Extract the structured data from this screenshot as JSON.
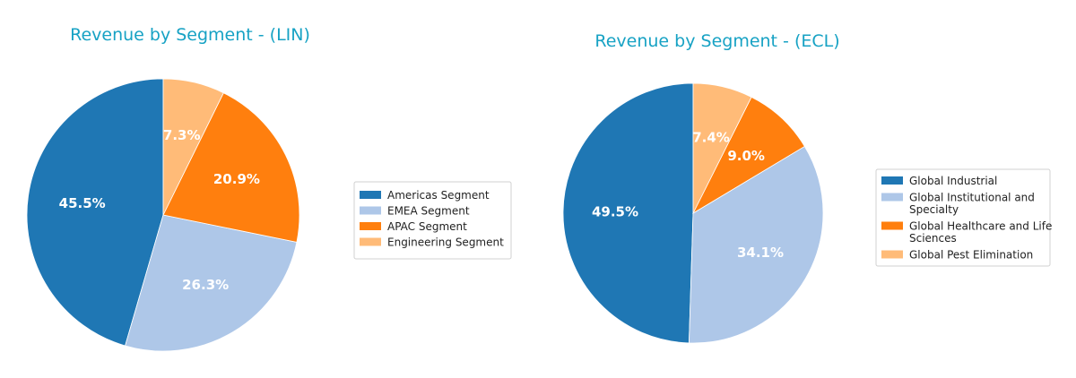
{
  "chart_data": [
    {
      "type": "pie",
      "title": "Revenue by Segment - (LIN)",
      "categories": [
        "Americas Segment",
        "EMEA Segment",
        "APAC Segment",
        "Engineering Segment"
      ],
      "values": [
        45.5,
        26.3,
        20.9,
        7.3
      ],
      "labels": [
        "45.5%",
        "26.3%",
        "20.9%",
        "7.3%"
      ],
      "colors": [
        "#1f77b4",
        "#aec7e8",
        "#ff7f0e",
        "#ffbb78"
      ],
      "start_angle_deg": 90,
      "direction": "counterclockwise",
      "legend_position": "right"
    },
    {
      "type": "pie",
      "title": "Revenue by Segment - (ECL)",
      "categories": [
        "Global Industrial",
        "Global Institutional and Specialty",
        "Global Healthcare and Life Sciences",
        "Global Pest Elimination"
      ],
      "legend_lines": [
        [
          "Global Industrial"
        ],
        [
          "Global Institutional and",
          "Specialty"
        ],
        [
          "Global Healthcare and Life",
          "Sciences"
        ],
        [
          "Global Pest Elimination"
        ]
      ],
      "values": [
        49.5,
        34.1,
        9.0,
        7.4
      ],
      "labels": [
        "49.5%",
        "34.1%",
        "9.0%",
        "7.4%"
      ],
      "colors": [
        "#1f77b4",
        "#aec7e8",
        "#ff7f0e",
        "#ffbb78"
      ],
      "start_angle_deg": 90,
      "direction": "counterclockwise",
      "legend_position": "right"
    }
  ]
}
